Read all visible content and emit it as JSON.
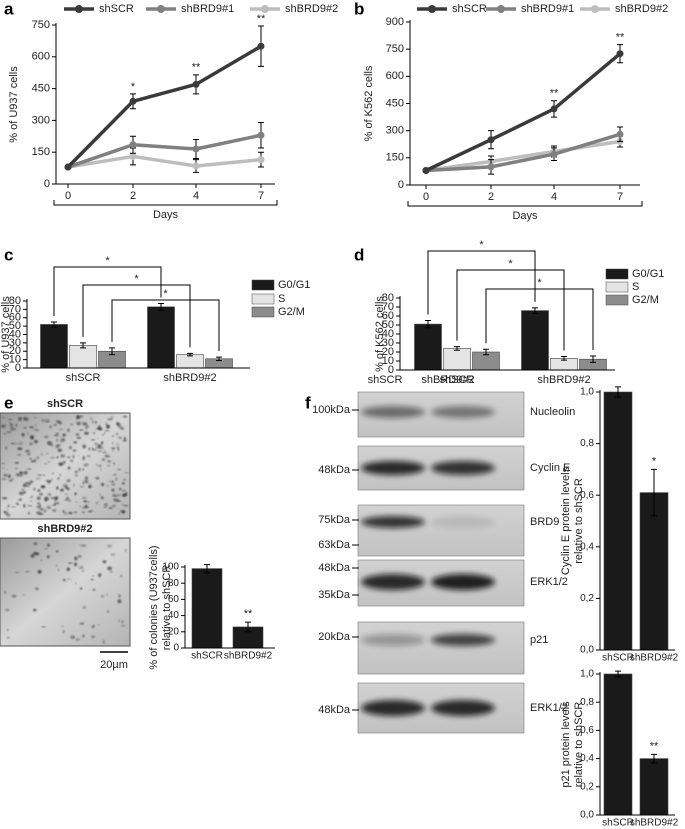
{
  "panel_labels": [
    "a",
    "b",
    "c",
    "d",
    "e",
    "f"
  ],
  "chart_data": [
    {
      "type": "line",
      "y_label": "% of U937 cells",
      "x_label": "Days",
      "categories": [
        "0",
        "2",
        "4",
        "7"
      ],
      "series": [
        {
          "name": "shSCR",
          "color": "#3a3a3a",
          "values": [
            80,
            390,
            470,
            650
          ],
          "errors": [
            null,
            35,
            45,
            95
          ]
        },
        {
          "name": "shBRD9#1",
          "color": "#808080",
          "values": [
            80,
            185,
            165,
            230
          ],
          "errors": [
            null,
            40,
            45,
            60
          ]
        },
        {
          "name": "shBRD9#2",
          "color": "#bdbdbd",
          "values": [
            80,
            130,
            85,
            115
          ],
          "errors": [
            null,
            40,
            30,
            35
          ]
        }
      ],
      "annotations": [
        null,
        "*",
        "**",
        "**"
      ],
      "ylim": [
        0,
        750
      ],
      "yticks": [
        0,
        150,
        300,
        450,
        600,
        750
      ]
    },
    {
      "type": "line",
      "y_label": "% of K562 cells",
      "x_label": "Days",
      "categories": [
        "0",
        "2",
        "4",
        "7"
      ],
      "series": [
        {
          "name": "shSCR",
          "color": "#3a3a3a",
          "values": [
            80,
            250,
            420,
            725
          ],
          "errors": [
            null,
            50,
            45,
            50
          ]
        },
        {
          "name": "shBRD9#1",
          "color": "#808080",
          "values": [
            80,
            100,
            170,
            280
          ],
          "errors": [
            null,
            40,
            35,
            40
          ]
        },
        {
          "name": "shBRD9#2",
          "color": "#bdbdbd",
          "values": [
            80,
            130,
            185,
            240
          ],
          "errors": [
            null,
            30,
            30,
            30
          ]
        }
      ],
      "annotations": [
        null,
        null,
        "**",
        "**"
      ],
      "ylim": [
        0,
        900
      ],
      "yticks": [
        0,
        150,
        300,
        450,
        600,
        750,
        900
      ]
    },
    {
      "type": "bar",
      "y_label": "% of U937 cells",
      "categories": [
        "shSCR",
        "shBRD9#2"
      ],
      "series": [
        {
          "name": "G0/G1",
          "color": "#1a1a1a",
          "values": [
            52,
            73
          ],
          "errors": [
            3,
            4
          ]
        },
        {
          "name": "S",
          "color": "#e4e4e4",
          "values": [
            27,
            16
          ],
          "errors": [
            3,
            1.5
          ]
        },
        {
          "name": "G2/M",
          "color": "#8c8c8c",
          "values": [
            20,
            11
          ],
          "errors": [
            4,
            2
          ]
        }
      ],
      "comparisons": [
        "*",
        "*",
        "*"
      ],
      "ylim": [
        0,
        80
      ],
      "yticks": [
        0,
        10,
        20,
        30,
        40,
        50,
        60,
        70,
        80
      ]
    },
    {
      "type": "bar",
      "y_label": "% of K562 cells",
      "categories": [
        "shSCR",
        "shBRD9#2"
      ],
      "series": [
        {
          "name": "G0/G1",
          "color": "#1a1a1a",
          "values": [
            51,
            66
          ],
          "errors": [
            4,
            3
          ]
        },
        {
          "name": "S",
          "color": "#e4e4e4",
          "values": [
            24,
            13
          ],
          "errors": [
            2,
            2
          ]
        },
        {
          "name": "G2/M",
          "color": "#8c8c8c",
          "values": [
            20,
            12
          ],
          "errors": [
            3,
            3.5
          ]
        }
      ],
      "comparisons": [
        "*",
        "*",
        "*"
      ],
      "ylim": [
        0,
        80
      ],
      "yticks": [
        0,
        10,
        20,
        30,
        40,
        50,
        60,
        70,
        80
      ]
    },
    {
      "type": "bar",
      "y_label": [
        "% of colonies (U937cells)",
        "relative to shSCR"
      ],
      "categories": [
        "shSCR",
        "shBRD9#2"
      ],
      "color": "#1a1a1a",
      "values": [
        98,
        26
      ],
      "errors": [
        5,
        6
      ],
      "annotations": [
        null,
        "**"
      ],
      "ylim": [
        0,
        100
      ],
      "yticks": [
        0,
        20,
        40,
        60,
        80,
        100
      ]
    },
    {
      "type": "bar",
      "y_label": [
        "Cyclin E protein levels",
        "relative to shSCR"
      ],
      "categories": [
        "shSCR",
        "shBRD9#2"
      ],
      "color": "#1a1a1a",
      "values": [
        1.0,
        0.61
      ],
      "errors": [
        0.02,
        0.09
      ],
      "annotations": [
        null,
        "*"
      ],
      "ylim": [
        0,
        1.0
      ],
      "yticks": [
        {
          "value": 0,
          "label": "0,0"
        },
        {
          "value": 0.2,
          "label": "0,2"
        },
        {
          "value": 0.4,
          "label": "0,4"
        },
        {
          "value": 0.6,
          "label": "0,6"
        },
        {
          "value": 0.8,
          "label": "0,8"
        },
        {
          "value": 1.0,
          "label": "1,0"
        }
      ]
    },
    {
      "type": "bar",
      "y_label": [
        "p21 protein levels",
        "relative to shSCR"
      ],
      "categories": [
        "shSCR",
        "shBRD9#2"
      ],
      "color": "#1a1a1a",
      "values": [
        1.0,
        0.4
      ],
      "errors": [
        0.02,
        0.03
      ],
      "annotations": [
        null,
        "**"
      ],
      "ylim": [
        0,
        1.0
      ],
      "yticks": [
        {
          "value": 0,
          "label": "0,0"
        },
        {
          "value": 0.2,
          "label": "0,2"
        },
        {
          "value": 0.4,
          "label": "0,4"
        },
        {
          "value": 0.6,
          "label": "0,6"
        },
        {
          "value": 0.8,
          "label": "0,8"
        },
        {
          "value": 1.0,
          "label": "1,0"
        }
      ]
    }
  ],
  "colony_assay": {
    "image_labels": [
      "shSCR",
      "shBRD9#2"
    ],
    "scale_bar": "20µm"
  },
  "western_blot": {
    "columns": [
      "shSCR",
      "shBRD9#2"
    ],
    "blots": [
      {
        "markers": [
          "100kDa"
        ],
        "protein": "Nucleolin"
      },
      {
        "markers": [
          "48kDa"
        ],
        "protein": "Cyclin E"
      },
      {
        "markers": [
          "75kDa",
          "63kDa"
        ],
        "protein": "BRD9"
      },
      {
        "markers": [
          "48kDa",
          "35kDa"
        ],
        "protein": "ERK1/2"
      },
      {
        "markers": [
          "20kDa"
        ],
        "protein": "p21"
      },
      {
        "markers": [
          "48kDa"
        ],
        "protein": "ERK1/2"
      }
    ]
  }
}
